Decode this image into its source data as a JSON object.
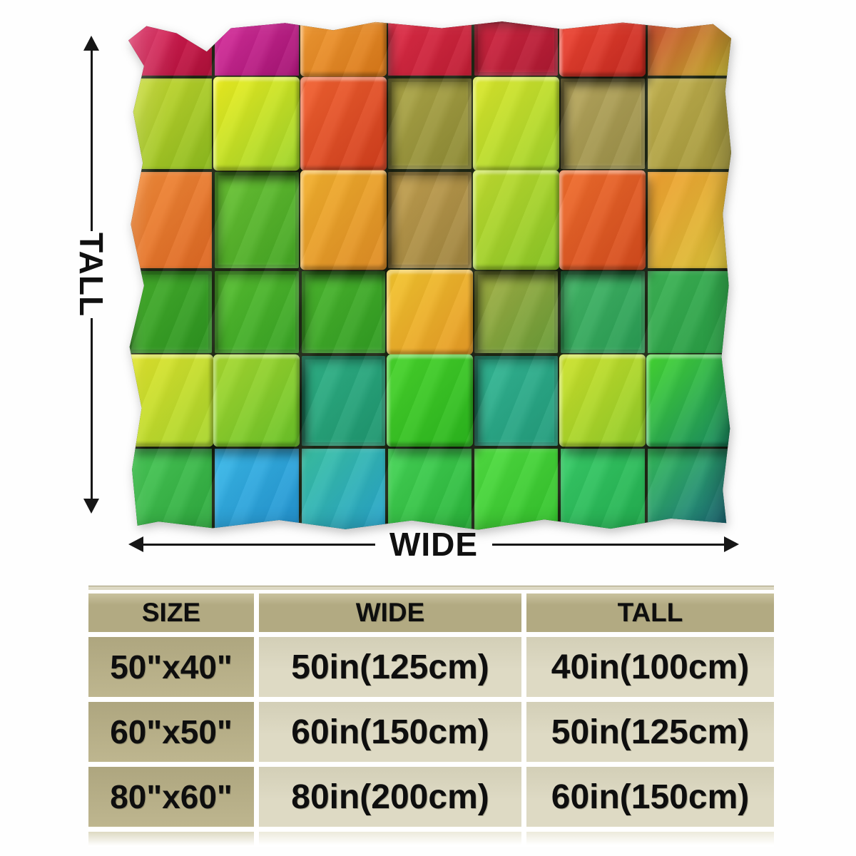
{
  "labels": {
    "tall": "TALL",
    "wide": "WIDE"
  },
  "size_table": {
    "headers": [
      "SIZE",
      "WIDE",
      "TALL"
    ],
    "rows": [
      {
        "size": "50\"x40\"",
        "wide": "50in(125cm)",
        "tall": "40in(100cm)"
      },
      {
        "size": "60\"x50\"",
        "wide": "60in(150cm)",
        "tall": "50in(125cm)"
      },
      {
        "size": "80\"x60\"",
        "wide": "80in(200cm)",
        "tall": "60in(150cm)"
      }
    ],
    "colors": {
      "header_bg": "#b2aa82",
      "header_bg_light": "#c9c29e",
      "size_col_bg": "#aea67f",
      "size_col_bg_light": "#beb68f",
      "cell_bg": "#dedac4",
      "cell_bg_dark": "#d3cfb7",
      "gap": "#ffffff",
      "text": "#0e0e0e"
    }
  },
  "blanket": {
    "name": "rainbow-3d-cubes-blanket",
    "grid": {
      "rows": 6,
      "cols": 7,
      "cells": [
        [
          {
            "c1": "#e3215c",
            "c2": "#ad1038",
            "t": "flat"
          },
          {
            "c1": "#d9309e",
            "c2": "#a31272",
            "t": "flat"
          },
          {
            "c1": "#f29b33",
            "c2": "#d87718",
            "t": "raised"
          },
          {
            "c1": "#e02d47",
            "c2": "#bd1c33",
            "t": "flat"
          },
          {
            "c1": "#d42742",
            "c2": "#aa1830",
            "t": "recessed"
          },
          {
            "c1": "#f04634",
            "c2": "#c2281e",
            "t": "raised"
          },
          {
            "c1": "#cc4a30",
            "c2": "#c2b42e",
            "t": "flat"
          }
        ],
        [
          {
            "c1": "#c8da2f",
            "c2": "#8cba1e",
            "t": "flat"
          },
          {
            "c1": "#efef20",
            "c2": "#9cd32a",
            "t": "raised"
          },
          {
            "c1": "#f26231",
            "c2": "#d03d1c",
            "t": "raised"
          },
          {
            "c1": "#b0a94a",
            "c2": "#8b8833",
            "t": "recessed"
          },
          {
            "c1": "#dbe72b",
            "c2": "#a0d22c",
            "t": "raised"
          },
          {
            "c1": "#baa960",
            "c2": "#978d46",
            "t": "recessed"
          },
          {
            "c1": "#c3b250",
            "c2": "#a1953a",
            "t": "flat"
          }
        ],
        [
          {
            "c1": "#f28c3a",
            "c2": "#dd6722",
            "t": "flat"
          },
          {
            "c1": "#6dc536",
            "c2": "#42a422",
            "t": "recessed"
          },
          {
            "c1": "#f2b12e",
            "c2": "#de8b24",
            "t": "raised"
          },
          {
            "c1": "#c4a251",
            "c2": "#9d823e",
            "t": "recessed"
          },
          {
            "c1": "#c2dd30",
            "c2": "#88c626",
            "t": "raised"
          },
          {
            "c1": "#f06e2d",
            "c2": "#d2491c",
            "t": "raised"
          },
          {
            "c1": "#f0a031",
            "c2": "#d8c238",
            "t": "flat"
          }
        ],
        [
          {
            "c1": "#47b12d",
            "c2": "#2c921f",
            "t": "recessed"
          },
          {
            "c1": "#59c131",
            "c2": "#36a123",
            "t": "recessed"
          },
          {
            "c1": "#4eb92f",
            "c2": "#2f9a21",
            "t": "recessed"
          },
          {
            "c1": "#f2c52e",
            "c2": "#e69a26",
            "t": "raised"
          },
          {
            "c1": "#a6b145",
            "c2": "#679a36",
            "t": "recessed"
          },
          {
            "c1": "#45b969",
            "c2": "#289a52",
            "t": "recessed"
          },
          {
            "c1": "#3db455",
            "c2": "#279a43",
            "t": "flat"
          }
        ],
        [
          {
            "c1": "#e2e52d",
            "c2": "#a6d42c",
            "t": "raised"
          },
          {
            "c1": "#a9d930",
            "c2": "#68c228",
            "t": "raised"
          },
          {
            "c1": "#31b489",
            "c2": "#1d946d",
            "t": "recessed"
          },
          {
            "c1": "#49d52c",
            "c2": "#2ab51d",
            "t": "raised"
          },
          {
            "c1": "#35b996",
            "c2": "#219a7a",
            "t": "recessed"
          },
          {
            "c1": "#cde12b",
            "c2": "#8ecb29",
            "t": "raised"
          },
          {
            "c1": "#45d931",
            "c2": "#198a64",
            "t": "raised"
          }
        ],
        [
          {
            "c1": "#49c957",
            "c2": "#2ea93e",
            "t": "flat"
          },
          {
            "c1": "#3ab9e9",
            "c2": "#2292cf",
            "t": "flat"
          },
          {
            "c1": "#3ac1a2",
            "c2": "#27a3cb",
            "t": "flat"
          },
          {
            "c1": "#45d556",
            "c2": "#2ab43a",
            "t": "flat"
          },
          {
            "c1": "#51de41",
            "c2": "#32c12b",
            "t": "flat"
          },
          {
            "c1": "#39cd69",
            "c2": "#22ae4f",
            "t": "flat"
          },
          {
            "c1": "#35bd59",
            "c2": "#1c6f86",
            "t": "flat"
          }
        ]
      ]
    }
  }
}
